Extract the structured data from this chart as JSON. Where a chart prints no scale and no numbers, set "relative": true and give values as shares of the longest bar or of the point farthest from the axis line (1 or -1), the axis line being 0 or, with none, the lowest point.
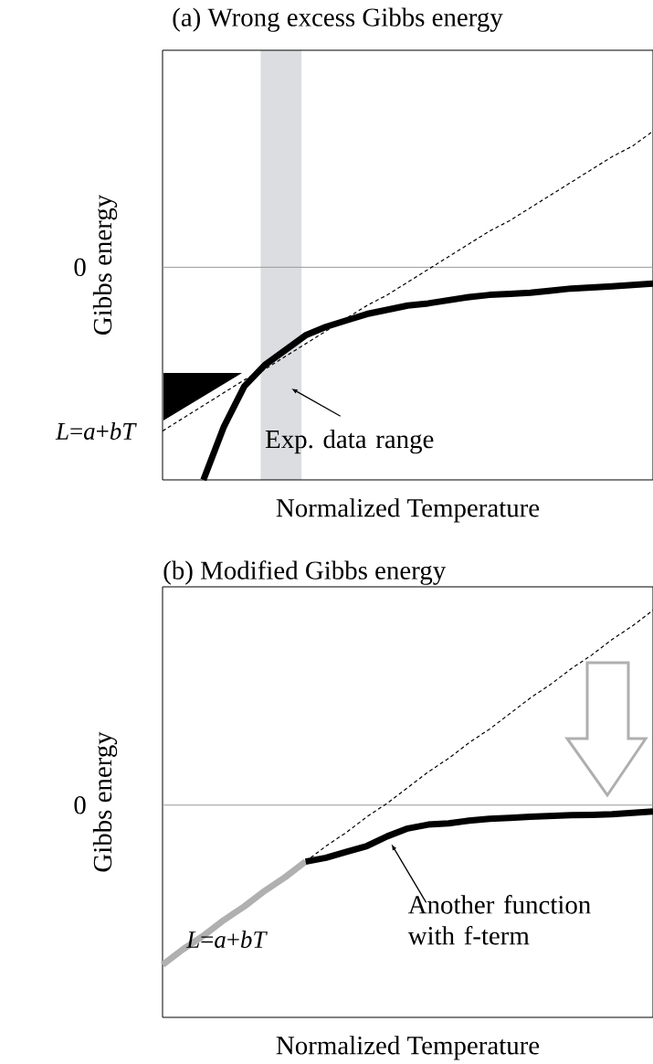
{
  "chart_data": [
    {
      "type": "line",
      "title": "(a) Wrong excess Gibbs energy",
      "xlabel": "Normalized Temperature",
      "ylabel": "Gibbs energy",
      "relative": true,
      "categories": [
        null,
        null,
        null,
        null,
        null,
        null,
        null,
        null,
        null,
        null,
        null,
        null,
        null,
        null,
        null,
        null,
        null,
        null,
        null,
        null,
        null,
        null,
        null,
        null,
        null
      ],
      "series": [
        {
          "name": "*L*=*a*+*bT*",
          "color": "#000000",
          "line_style": "dashed",
          "values": [
            -0.77,
            -0.71,
            -0.65,
            -0.59,
            -0.53,
            -0.48,
            -0.42,
            -0.36,
            -0.3,
            -0.24,
            -0.18,
            -0.13,
            -0.07,
            -0.01,
            0.05,
            0.11,
            0.17,
            0.22,
            0.28,
            0.34,
            0.4,
            0.46,
            0.52,
            0.57,
            0.64
          ]
        },
        {
          "color": "#000000",
          "line_style": "solid",
          "values": [
            null,
            null,
            -1.0,
            -0.75,
            -0.56,
            -0.46,
            -0.39,
            -0.32,
            -0.28,
            -0.25,
            -0.22,
            -0.2,
            -0.18,
            -0.17,
            -0.155,
            -0.14,
            -0.13,
            -0.125,
            -0.12,
            -0.11,
            -0.1,
            -0.095,
            -0.09,
            -0.083,
            -0.077
          ]
        }
      ],
      "ref_lines": [
        {
          "axis": "y",
          "value": 0,
          "label": "0",
          "color": "#999999"
        }
      ],
      "annotations": [
        "Exp. data range"
      ]
    },
    {
      "type": "line",
      "title": "(b) Modified Gibbs energy",
      "xlabel": "Normalized Temperature",
      "ylabel": "Gibbs energy",
      "relative": true,
      "categories": [
        null,
        null,
        null,
        null,
        null,
        null,
        null,
        null,
        null,
        null,
        null,
        null,
        null,
        null,
        null,
        null,
        null,
        null,
        null,
        null,
        null,
        null,
        null,
        null,
        null
      ],
      "series": [
        {
          "color": "#000000",
          "line_style": "dashed",
          "values": [
            -0.82,
            -0.74,
            -0.67,
            null,
            null,
            null,
            null,
            -0.29,
            -0.21,
            -0.14,
            -0.06,
            0.01,
            0.09,
            0.17,
            0.24,
            0.32,
            0.39,
            0.47,
            0.55,
            0.62,
            0.7,
            0.77,
            0.85,
            0.92,
            1.0
          ]
        },
        {
          "name": "*L*=*a*+*bT*",
          "color": "#b0b0b0",
          "line_style": "solid",
          "values": [
            -0.82,
            -0.74,
            -0.67,
            -0.59,
            -0.52,
            -0.44,
            -0.37,
            -0.29,
            null,
            null,
            null,
            null,
            null,
            null,
            null,
            null,
            null,
            null,
            null,
            null,
            null,
            null,
            null,
            null,
            null
          ]
        },
        {
          "color": "#000000",
          "line_style": "solid",
          "values": [
            null,
            null,
            null,
            null,
            null,
            null,
            null,
            -0.29,
            -0.27,
            -0.24,
            -0.21,
            -0.16,
            -0.12,
            -0.1,
            -0.094,
            -0.08,
            -0.07,
            -0.066,
            -0.06,
            -0.056,
            -0.052,
            -0.05,
            -0.047,
            -0.04,
            -0.033
          ]
        }
      ],
      "ref_lines": [
        {
          "axis": "y",
          "value": 0,
          "label": "0",
          "color": "#999999"
        }
      ],
      "annotations": [
        "Another function with f-term"
      ]
    }
  ]
}
